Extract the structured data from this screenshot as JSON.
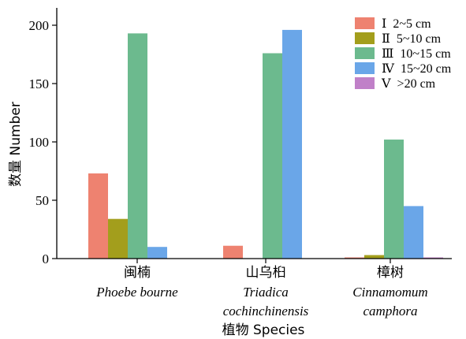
{
  "chart_data": {
    "type": "bar",
    "ylabel": "数量 Number",
    "xlabel": "植物 Species",
    "ylim": [
      0,
      220
    ],
    "yticks": [
      0,
      50,
      100,
      150,
      200
    ],
    "grid": false,
    "legend_position": "top-right",
    "categories": [
      {
        "cn": "闽楠",
        "latin": [
          "Phoebe bourne"
        ]
      },
      {
        "cn": "山乌桕",
        "latin": [
          "Triadica",
          "cochinchinensis"
        ]
      },
      {
        "cn": "樟树",
        "latin": [
          "Cinnamomum",
          "camphora"
        ]
      }
    ],
    "series": [
      {
        "name": "Ⅰ  2~5 cm",
        "color": "#ee8270",
        "values": [
          73,
          11,
          1
        ]
      },
      {
        "name": "Ⅱ  5~10 cm",
        "color": "#a39e1c",
        "values": [
          34,
          0,
          3
        ]
      },
      {
        "name": "Ⅲ  10~15 cm",
        "color": "#6cba8e",
        "values": [
          193,
          176,
          102
        ]
      },
      {
        "name": "Ⅳ  15~20 cm",
        "color": "#6aa6e8",
        "values": [
          10,
          196,
          45
        ]
      },
      {
        "name": "Ⅴ  >20 cm",
        "color": "#c080c8",
        "values": [
          0,
          0,
          1
        ]
      }
    ]
  }
}
